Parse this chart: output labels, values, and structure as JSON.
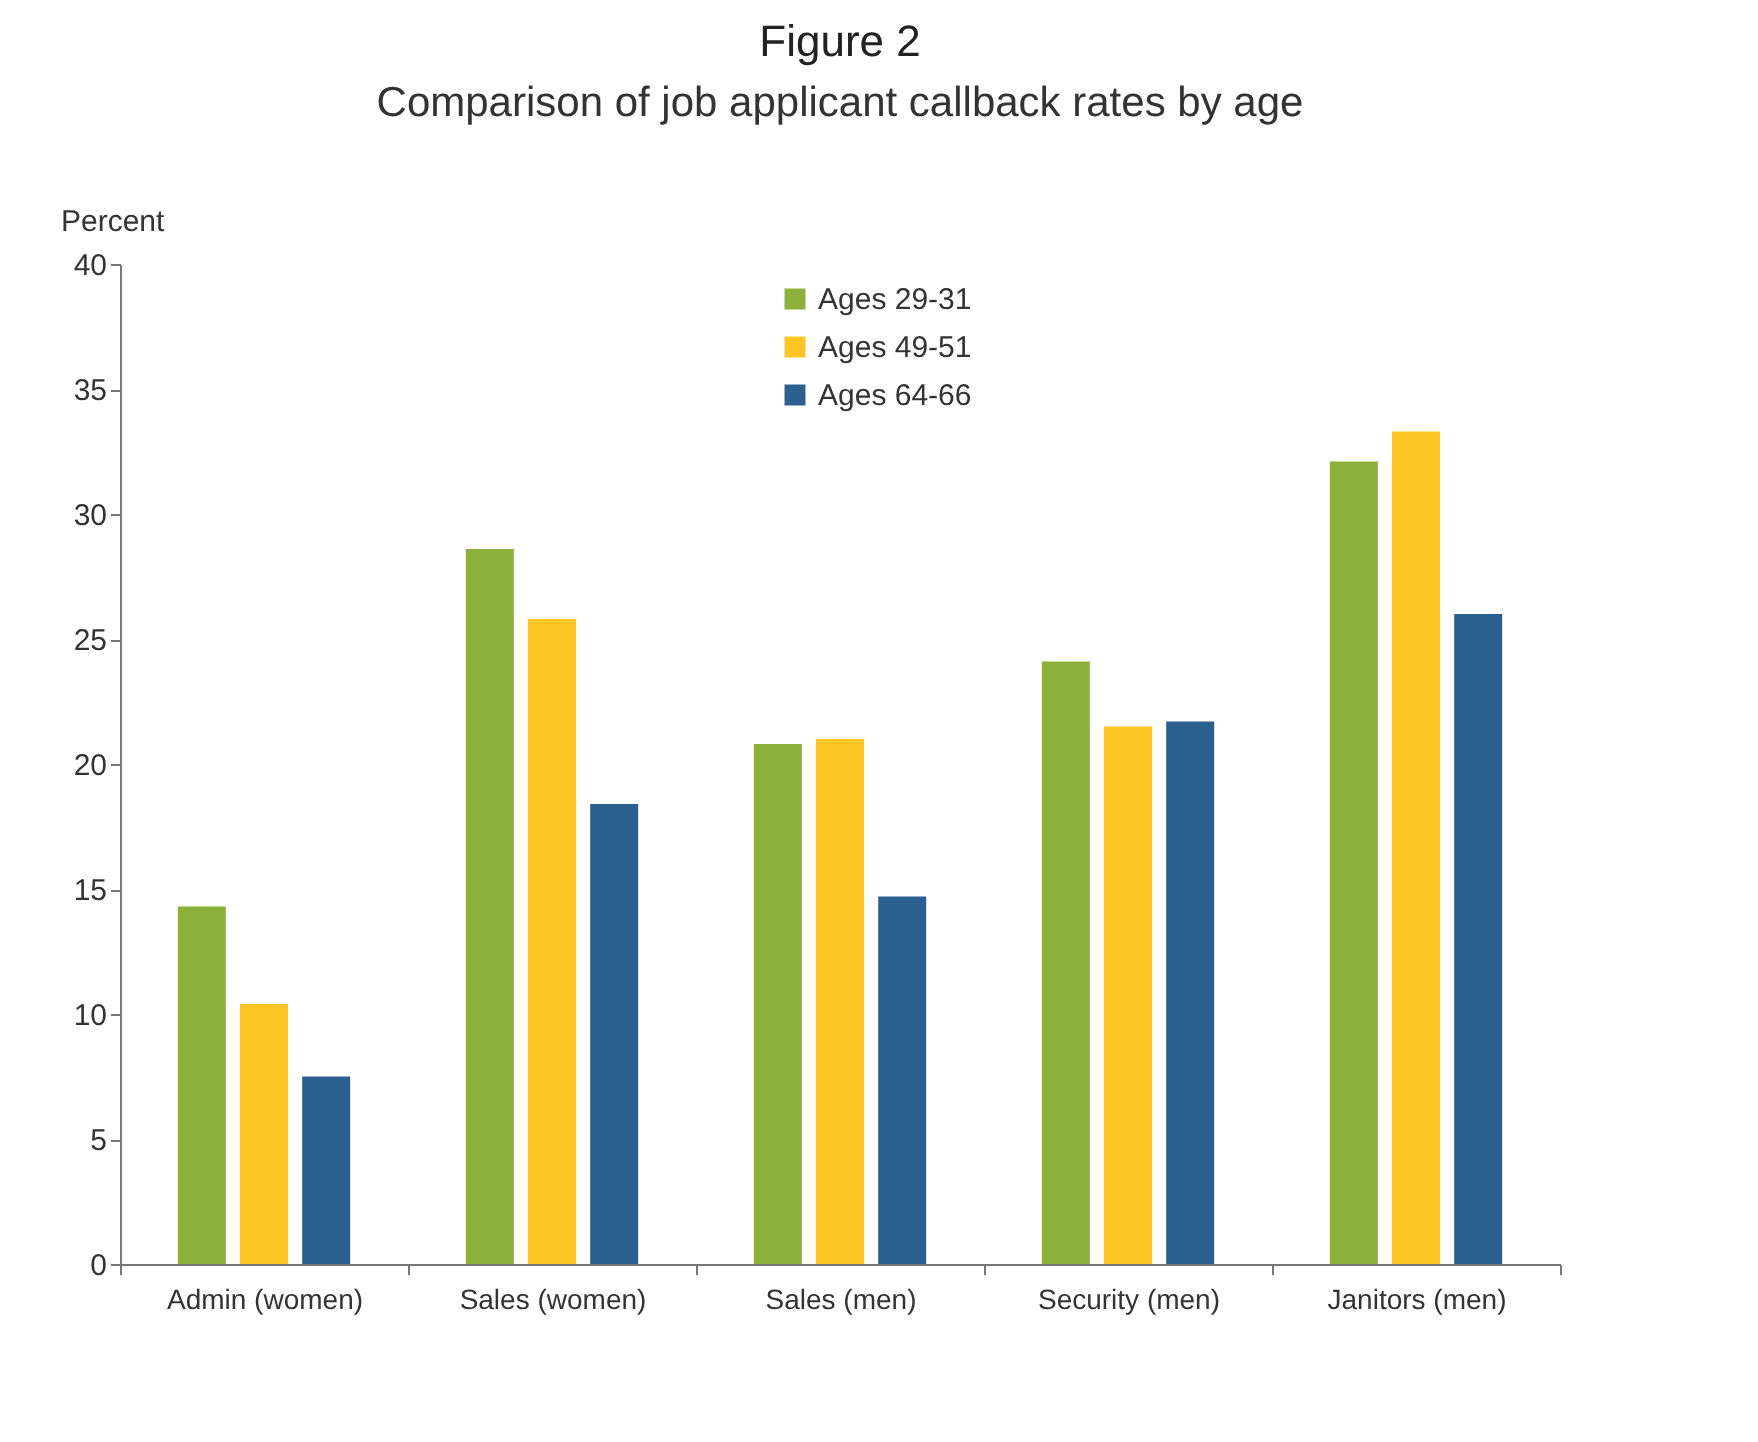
{
  "chart_data": {
    "type": "bar",
    "title": "Figure 2",
    "subtitle": "Comparison of job applicant callback rates by age",
    "ylabel": "Percent",
    "categories": [
      "Admin (women)",
      "Sales (women)",
      "Sales (men)",
      "Security (men)",
      "Janitors (men)"
    ],
    "series": [
      {
        "name": "Ages 29-31",
        "color": "#8bb13a",
        "values": [
          14.3,
          28.6,
          20.8,
          24.1,
          32.1
        ]
      },
      {
        "name": "Ages 49-51",
        "color": "#fcc523",
        "values": [
          10.4,
          25.8,
          21.0,
          21.5,
          33.3
        ]
      },
      {
        "name": "Ages 64-66",
        "color": "#2a5f8f",
        "values": [
          7.5,
          18.4,
          14.7,
          21.7,
          26.0
        ]
      }
    ],
    "ylim": [
      0,
      40
    ],
    "yticks": [
      0,
      5,
      10,
      15,
      20,
      25,
      30,
      35,
      40
    ],
    "grid": false,
    "legend": "top"
  }
}
